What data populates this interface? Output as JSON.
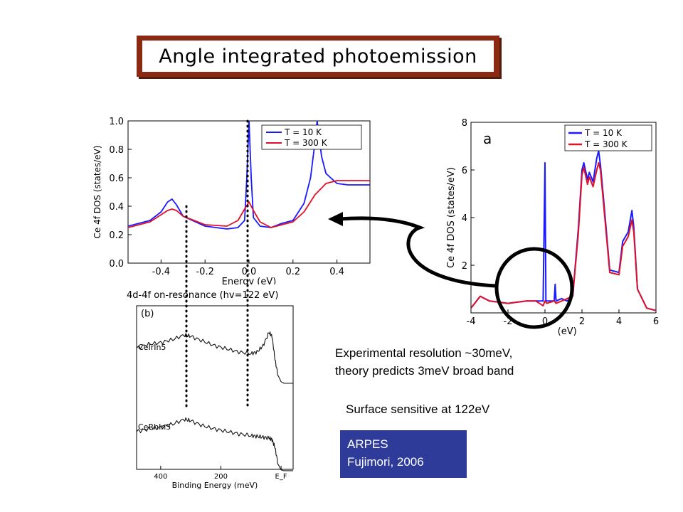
{
  "slide": {
    "title": "Angle integrated photoemission",
    "text_resolution_line1": "Experimental resolution ~30meV,",
    "text_resolution_line2": "theory predicts 3meV broad band",
    "text_surface": "Surface sensitive at 122eV",
    "ref_line1": "ARPES",
    "ref_line2": "Fujimori, 2006"
  },
  "chart_data": [
    {
      "type": "line",
      "ylabel": "Ce 4f DOS (states/eV)",
      "xlabel": "Energy (eV)",
      "xlim": [
        -0.55,
        0.55
      ],
      "ylim": [
        0.0,
        1.0
      ],
      "xticks": [
        "-0.4",
        "-0.2",
        "0.0",
        "0.2",
        "0.4"
      ],
      "yticks": [
        "0.0",
        "0.2",
        "0.4",
        "0.6",
        "0.8",
        "1.0"
      ],
      "legend_position": "top-right",
      "colors": {
        "t10": "#1a1aff",
        "t300": "#e0102a"
      },
      "series": [
        {
          "name": "T = 10 K",
          "x": [
            -0.55,
            -0.45,
            -0.4,
            -0.37,
            -0.35,
            -0.33,
            -0.3,
            -0.2,
            -0.1,
            -0.05,
            -0.02,
            -0.01,
            0.0,
            0.01,
            0.02,
            0.05,
            0.1,
            0.15,
            0.2,
            0.25,
            0.28,
            0.3,
            0.31,
            0.33,
            0.35,
            0.4,
            0.45,
            0.55
          ],
          "y": [
            0.26,
            0.3,
            0.36,
            0.43,
            0.45,
            0.41,
            0.33,
            0.26,
            0.24,
            0.25,
            0.3,
            0.6,
            1.0,
            0.6,
            0.32,
            0.26,
            0.25,
            0.28,
            0.3,
            0.42,
            0.6,
            0.85,
            1.0,
            0.75,
            0.63,
            0.56,
            0.55,
            0.55
          ]
        },
        {
          "name": "T = 300 K",
          "x": [
            -0.55,
            -0.45,
            -0.4,
            -0.37,
            -0.35,
            -0.33,
            -0.3,
            -0.2,
            -0.1,
            -0.05,
            -0.02,
            0.0,
            0.02,
            0.05,
            0.1,
            0.15,
            0.2,
            0.25,
            0.3,
            0.35,
            0.4,
            0.45,
            0.55
          ],
          "y": [
            0.25,
            0.29,
            0.34,
            0.37,
            0.38,
            0.37,
            0.33,
            0.27,
            0.26,
            0.3,
            0.38,
            0.43,
            0.37,
            0.29,
            0.25,
            0.27,
            0.29,
            0.36,
            0.48,
            0.56,
            0.58,
            0.58,
            0.58
          ]
        }
      ]
    },
    {
      "type": "line",
      "label": "4d-4f on-resonance (hv=122 eV)",
      "panel_label": "(b)",
      "xlabel": "Binding Energy (meV)",
      "xticks": [
        "400",
        "200",
        "E_F"
      ],
      "xlim": [
        480,
        -40
      ],
      "series": [
        {
          "name": "CeIrIn5",
          "x": [
            480,
            440,
            400,
            360,
            320,
            300,
            260,
            220,
            180,
            140,
            100,
            80,
            60,
            40,
            30,
            20,
            10,
            0,
            -10,
            -20,
            -40
          ],
          "y": [
            0.55,
            0.6,
            0.62,
            0.66,
            0.72,
            0.7,
            0.64,
            0.58,
            0.54,
            0.5,
            0.48,
            0.5,
            0.58,
            0.75,
            0.7,
            0.4,
            0.2,
            0.12,
            0.1,
            0.1,
            0.1
          ]
        },
        {
          "name": "CeRhIn5",
          "x": [
            480,
            440,
            400,
            360,
            320,
            300,
            260,
            220,
            180,
            140,
            100,
            80,
            60,
            40,
            30,
            20,
            10,
            0,
            -10,
            -20,
            -40
          ],
          "y": [
            0.55,
            0.58,
            0.6,
            0.64,
            0.7,
            0.68,
            0.62,
            0.58,
            0.55,
            0.52,
            0.5,
            0.49,
            0.48,
            0.47,
            0.45,
            0.35,
            0.15,
            0.08,
            0.07,
            0.07,
            0.07
          ]
        }
      ]
    },
    {
      "type": "line",
      "panel_label": "a",
      "ylabel": "Ce 4f DOS (states/eV)",
      "xlabel": "(eV)",
      "xlim": [
        -4,
        6
      ],
      "ylim": [
        0,
        8
      ],
      "xticks": [
        "-4",
        "-2",
        "0",
        "2",
        "4",
        "6"
      ],
      "yticks": [
        "2",
        "4",
        "6",
        "8"
      ],
      "legend_position": "top-right",
      "colors": {
        "t10": "#1a1aff",
        "t300": "#e0102a"
      },
      "series": [
        {
          "name": "T = 10 K",
          "x": [
            -4,
            -3.5,
            -3,
            -2.5,
            -2,
            -1.5,
            -1,
            -0.5,
            -0.1,
            0.0,
            0.05,
            0.1,
            0.5,
            0.55,
            0.6,
            0.9,
            1.2,
            1.5,
            1.8,
            2.0,
            2.1,
            2.3,
            2.4,
            2.6,
            2.8,
            2.9,
            3.0,
            3.2,
            3.5,
            4.0,
            4.2,
            4.5,
            4.7,
            4.8,
            5.0,
            5.5,
            6.0
          ],
          "y": [
            0.2,
            0.7,
            0.5,
            0.45,
            0.4,
            0.45,
            0.5,
            0.5,
            0.5,
            6.3,
            0.5,
            0.5,
            0.5,
            1.2,
            0.5,
            0.6,
            0.5,
            0.7,
            3.5,
            6.0,
            6.3,
            5.6,
            5.9,
            5.5,
            6.5,
            6.8,
            6.2,
            4.5,
            1.8,
            1.7,
            3.0,
            3.4,
            4.3,
            3.6,
            1.0,
            0.2,
            0.1
          ]
        },
        {
          "name": "T = 300 K",
          "x": [
            -4,
            -3.5,
            -3,
            -2.5,
            -2,
            -1.5,
            -1,
            -0.5,
            -0.1,
            0.0,
            0.1,
            0.5,
            0.6,
            0.9,
            1.2,
            1.5,
            1.8,
            2.0,
            2.1,
            2.3,
            2.4,
            2.6,
            2.8,
            2.9,
            3.0,
            3.2,
            3.5,
            4.0,
            4.2,
            4.5,
            4.7,
            4.8,
            5.0,
            5.5,
            6.0
          ],
          "y": [
            0.2,
            0.7,
            0.5,
            0.45,
            0.4,
            0.45,
            0.5,
            0.5,
            0.3,
            0.5,
            0.4,
            0.5,
            0.4,
            0.5,
            0.6,
            0.7,
            3.3,
            5.8,
            6.1,
            5.4,
            5.7,
            5.3,
            6.0,
            6.3,
            6.0,
            4.3,
            1.7,
            1.6,
            2.8,
            3.2,
            3.9,
            3.4,
            1.0,
            0.2,
            0.1
          ]
        }
      ]
    }
  ]
}
